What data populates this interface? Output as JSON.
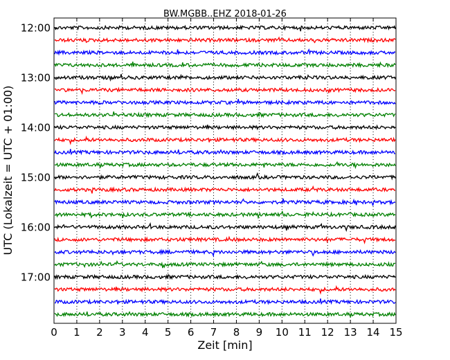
{
  "chart_data": {
    "type": "line",
    "title": "BW.MGBB..EHZ 2018-01-26",
    "xlabel": "Zeit  [min]",
    "ylabel": "UTC (Lokalzeit = UTC + 01:00)",
    "xlim": [
      0,
      15
    ],
    "x_ticks": [
      "0",
      "1",
      "2",
      "3",
      "4",
      "5",
      "6",
      "7",
      "8",
      "9",
      "10",
      "11",
      "12",
      "13",
      "14",
      "15"
    ],
    "y_ticks": [
      "12:00",
      "13:00",
      "14:00",
      "15:00",
      "16:00",
      "17:00"
    ],
    "grid": "vertical dotted",
    "traces": [
      {
        "start": "12:00",
        "color": "#000000"
      },
      {
        "start": "12:15",
        "color": "#ff0000"
      },
      {
        "start": "12:30",
        "color": "#0000ff"
      },
      {
        "start": "12:45",
        "color": "#008000"
      },
      {
        "start": "13:00",
        "color": "#000000"
      },
      {
        "start": "13:15",
        "color": "#ff0000"
      },
      {
        "start": "13:30",
        "color": "#0000ff"
      },
      {
        "start": "13:45",
        "color": "#008000"
      },
      {
        "start": "14:00",
        "color": "#000000"
      },
      {
        "start": "14:15",
        "color": "#ff0000"
      },
      {
        "start": "14:30",
        "color": "#0000ff"
      },
      {
        "start": "14:45",
        "color": "#008000"
      },
      {
        "start": "15:00",
        "color": "#000000"
      },
      {
        "start": "15:15",
        "color": "#ff0000"
      },
      {
        "start": "15:30",
        "color": "#0000ff"
      },
      {
        "start": "15:45",
        "color": "#008000"
      },
      {
        "start": "16:00",
        "color": "#000000"
      },
      {
        "start": "16:15",
        "color": "#ff0000"
      },
      {
        "start": "16:30",
        "color": "#0000ff"
      },
      {
        "start": "16:45",
        "color": "#008000"
      },
      {
        "start": "17:00",
        "color": "#000000"
      },
      {
        "start": "17:15",
        "color": "#ff0000"
      },
      {
        "start": "17:30",
        "color": "#0000ff"
      },
      {
        "start": "17:45",
        "color": "#008000"
      }
    ]
  }
}
